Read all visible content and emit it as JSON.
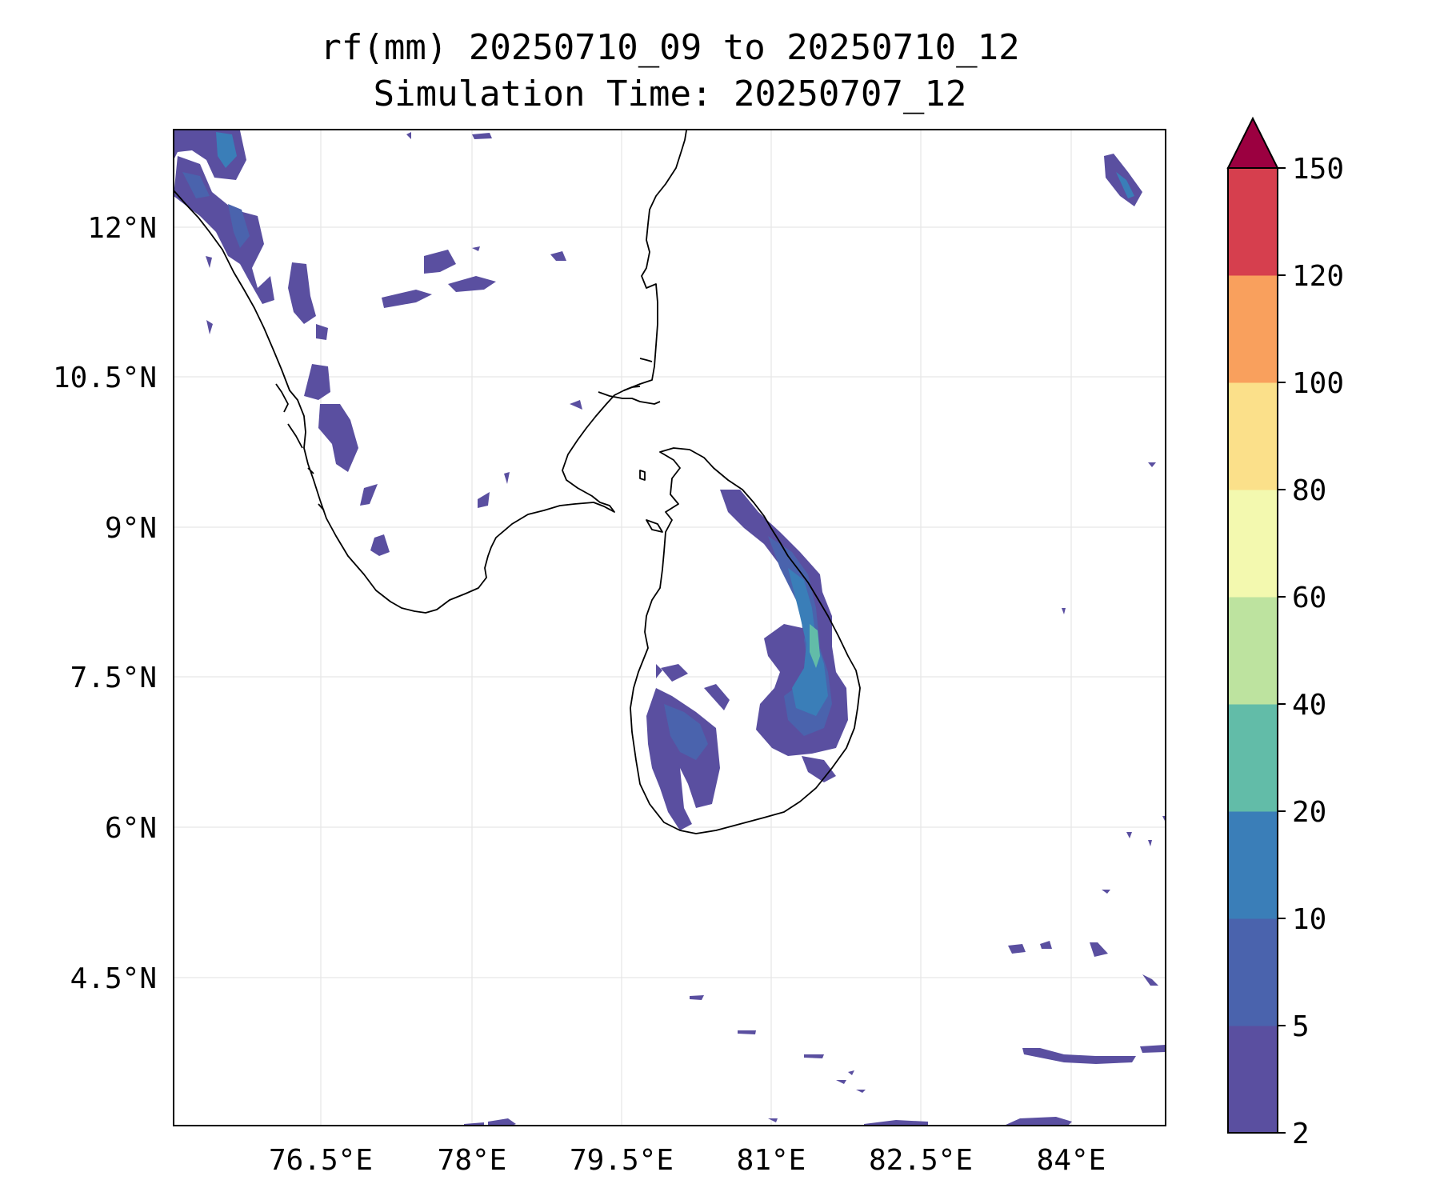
{
  "title": "rf(mm) 20250710_09 to 20250710_12",
  "subtitle": "Simulation Time: 20250707_12",
  "map": {
    "lon_labels": [
      "76.5°E",
      "78°E",
      "79.5°E",
      "81°E",
      "82.5°E",
      "84°E"
    ],
    "lat_labels": [
      "12°N",
      "10.5°N",
      "9°N",
      "7.5°N",
      "6°N",
      "4.5°N"
    ],
    "gridlines": true
  },
  "colorbar": {
    "levels": [
      "2",
      "5",
      "10",
      "20",
      "40",
      "60",
      "80",
      "100",
      "120",
      "150"
    ],
    "colors": [
      "#5a4fa0",
      "#4a63ad",
      "#3a7eb8",
      "#62bca8",
      "#bde39f",
      "#f3f9af",
      "#fbe08a",
      "#f9a05d",
      "#d63f4e"
    ],
    "extend_color": "#9b0040",
    "extend": "max"
  }
}
